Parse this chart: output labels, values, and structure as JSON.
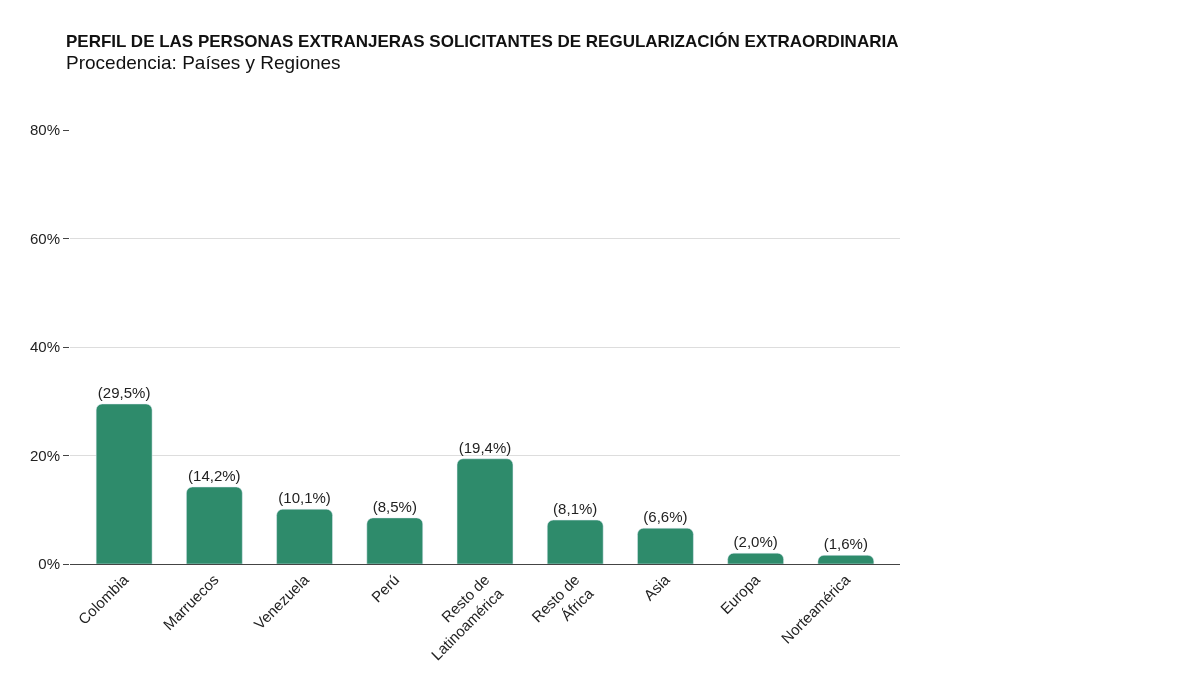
{
  "chart_data": {
    "type": "bar",
    "title": "PERFIL DE LAS PERSONAS EXTRANJERAS SOLICITANTES DE REGULARIZACIÓN EXTRAORDINARIA",
    "subtitle": "Procedencia: Países y Regiones",
    "categories": [
      "Colombia",
      "Marruecos",
      "Venezuela",
      "Perú",
      "Resto de\nLatinoamérica",
      "Resto de\nÁfrica",
      "Asia",
      "Europa",
      "Norteamérica"
    ],
    "values": [
      29.5,
      14.2,
      10.1,
      8.5,
      19.4,
      8.1,
      6.6,
      2.0,
      1.6
    ],
    "value_labels": [
      "(29,5%)",
      "(14,2%)",
      "(10,1%)",
      "(8,5%)",
      "(19,4%)",
      "(8,1%)",
      "(6,6%)",
      "(2,0%)",
      "(1,6%)"
    ],
    "color": "#2e8b6b",
    "ylim": [
      0,
      80
    ],
    "yticks": [
      {
        "value": 0,
        "label": "0%"
      },
      {
        "value": 20,
        "label": "20%"
      },
      {
        "value": 40,
        "label": "40%"
      },
      {
        "value": 60,
        "label": "60%"
      },
      {
        "value": 80,
        "label": "80%"
      }
    ],
    "grid": "y",
    "legend": false
  }
}
